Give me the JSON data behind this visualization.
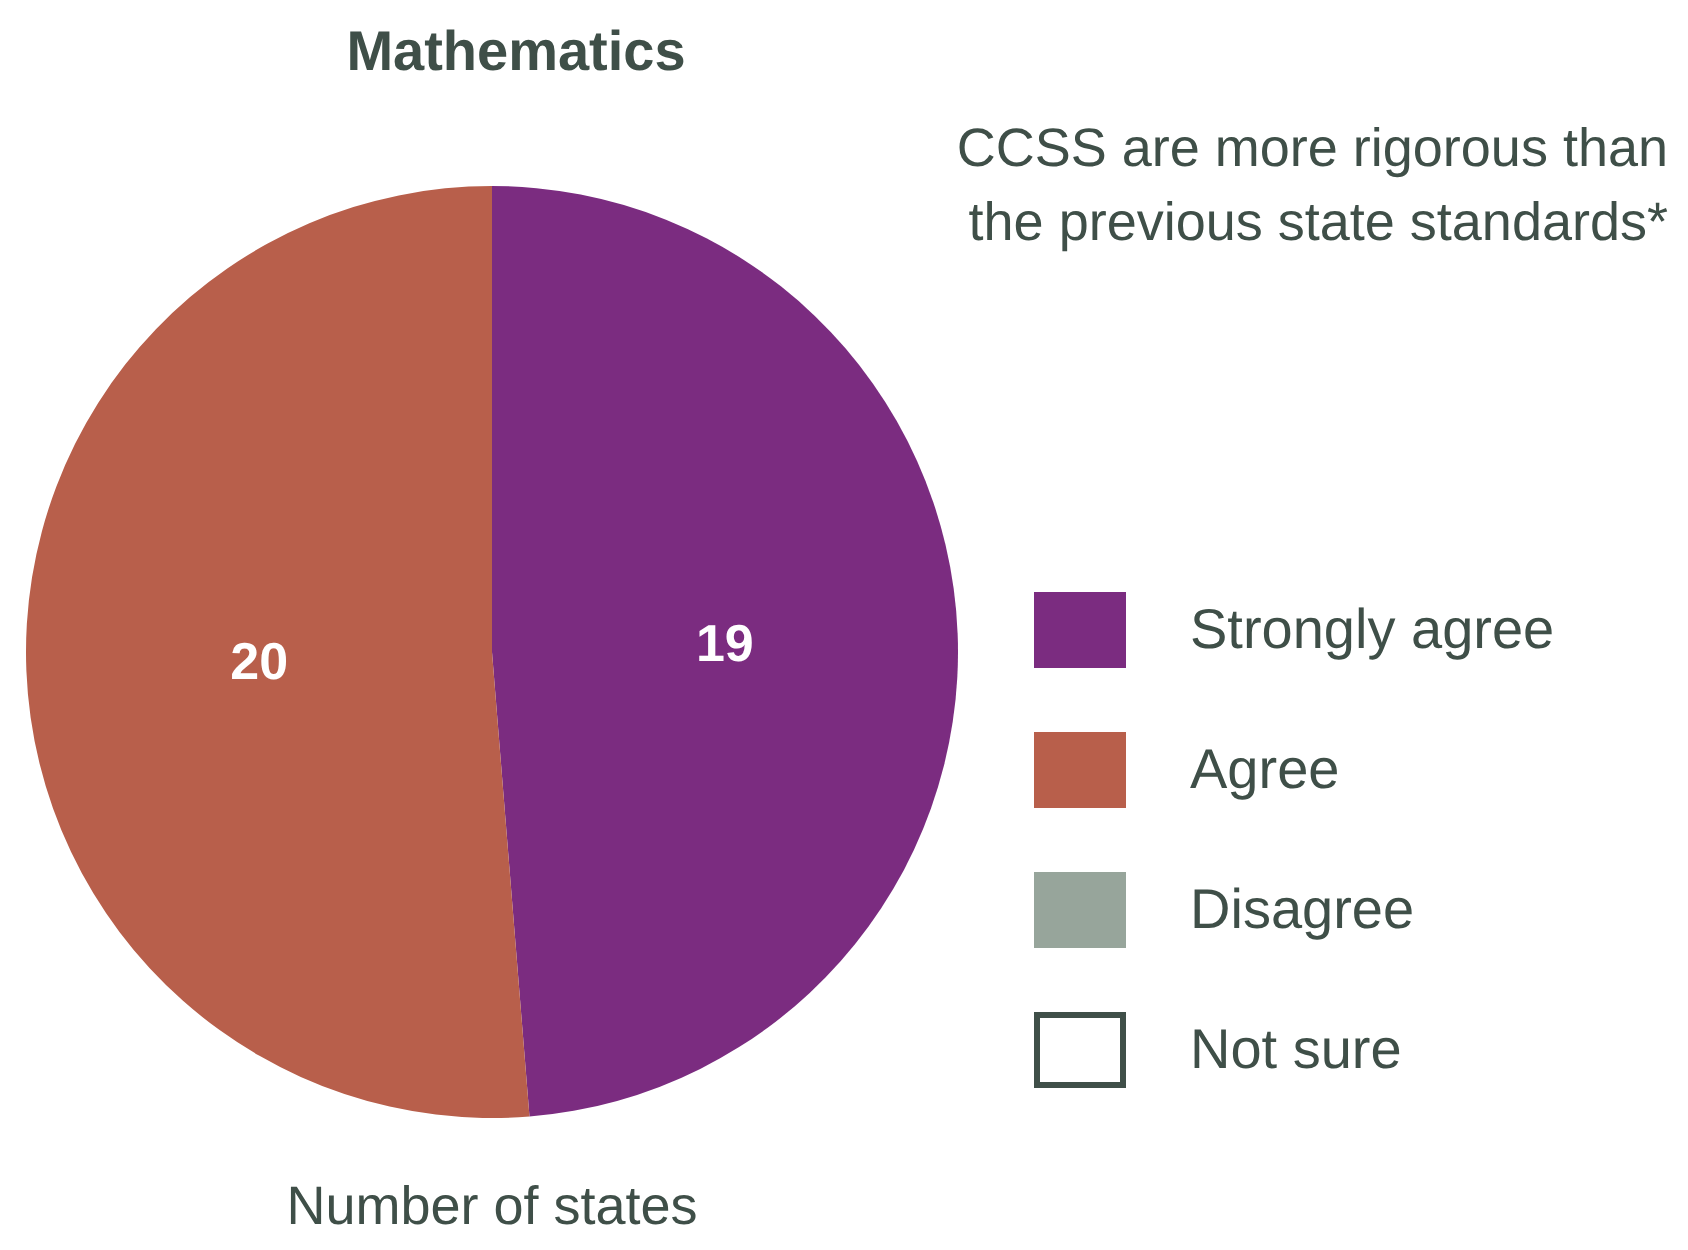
{
  "chart_data": {
    "type": "pie",
    "title": "Mathematics",
    "subtitle": "CCSS are more rigorous than the previous state standards*",
    "annotations": [
      "Number of states"
    ],
    "categories": [
      "Strongly agree",
      "Agree",
      "Disagree",
      "Not sure"
    ],
    "values": [
      19,
      20,
      0,
      0
    ],
    "colors": [
      "#7b2c80",
      "#b85f4b",
      "#97a59b",
      "#ffffff"
    ],
    "value_labels": [
      "19",
      "20",
      null,
      null
    ],
    "legend": "right"
  }
}
